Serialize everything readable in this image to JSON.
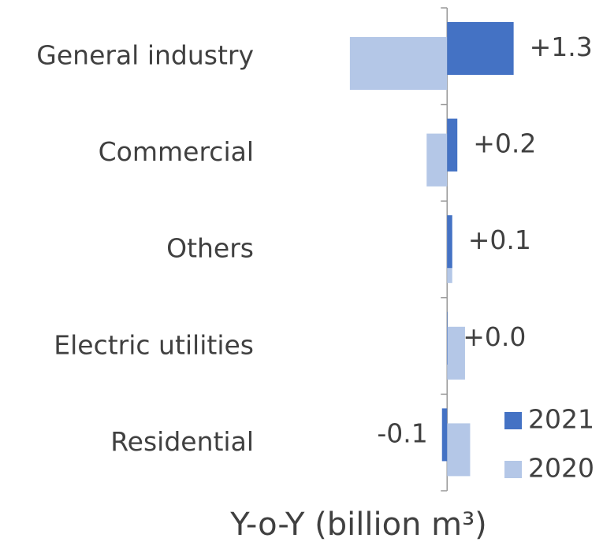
{
  "chart_data": {
    "type": "barh",
    "categories": [
      "General industry",
      "Commercial",
      "Others",
      "Electric utilities",
      "Residential"
    ],
    "series": [
      {
        "name": "2021",
        "color": "#4472c4",
        "values": [
          1.3,
          0.2,
          0.1,
          0.0,
          -0.1
        ],
        "value_labels": [
          "+1.3",
          "+0.2",
          "+0.1",
          "+0.0",
          "-0.1"
        ]
      },
      {
        "name": "2020",
        "color": "#b4c7e7",
        "values": [
          -1.9,
          -0.4,
          0.1,
          0.35,
          0.45
        ]
      }
    ],
    "xlabel": "Y-o-Y (billion m³)",
    "xlim": [
      -3.5,
      3.0
    ],
    "legend": "lower right"
  }
}
